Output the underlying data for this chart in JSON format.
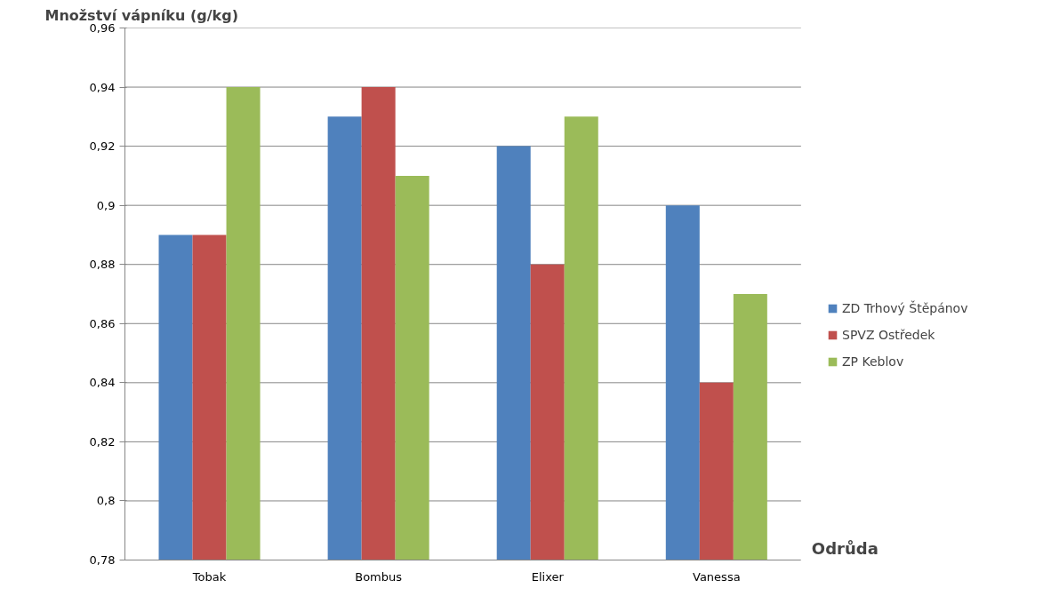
{
  "chart_data": {
    "type": "bar",
    "ylabel": "Množství vápníku (g/kg)",
    "xlabel": "Odrůda",
    "categories": [
      "Tobak",
      "Bombus",
      "Elixer",
      "Vanessa"
    ],
    "series": [
      {
        "name": "ZD Trhový Štěpánov",
        "color": "#4f81bd",
        "values": [
          0.89,
          0.93,
          0.92,
          0.9
        ]
      },
      {
        "name": "SPVZ Ostředek",
        "color": "#c0504d",
        "values": [
          0.89,
          0.94,
          0.88,
          0.84
        ]
      },
      {
        "name": "ZP Keblov",
        "color": "#9bbb59",
        "values": [
          0.94,
          0.91,
          0.93,
          0.87
        ]
      }
    ],
    "ylim": [
      0.78,
      0.96
    ],
    "yticks": [
      {
        "value": 0.78,
        "label": "0,78"
      },
      {
        "value": 0.8,
        "label": "0,8"
      },
      {
        "value": 0.82,
        "label": "0,82"
      },
      {
        "value": 0.84,
        "label": "0,84"
      },
      {
        "value": 0.86,
        "label": "0,86"
      },
      {
        "value": 0.88,
        "label": "0,88"
      },
      {
        "value": 0.9,
        "label": "0,9"
      },
      {
        "value": 0.92,
        "label": "0,92"
      },
      {
        "value": 0.94,
        "label": "0,94"
      },
      {
        "value": 0.96,
        "label": "0,96"
      }
    ],
    "grid": "y",
    "legend": "right"
  }
}
